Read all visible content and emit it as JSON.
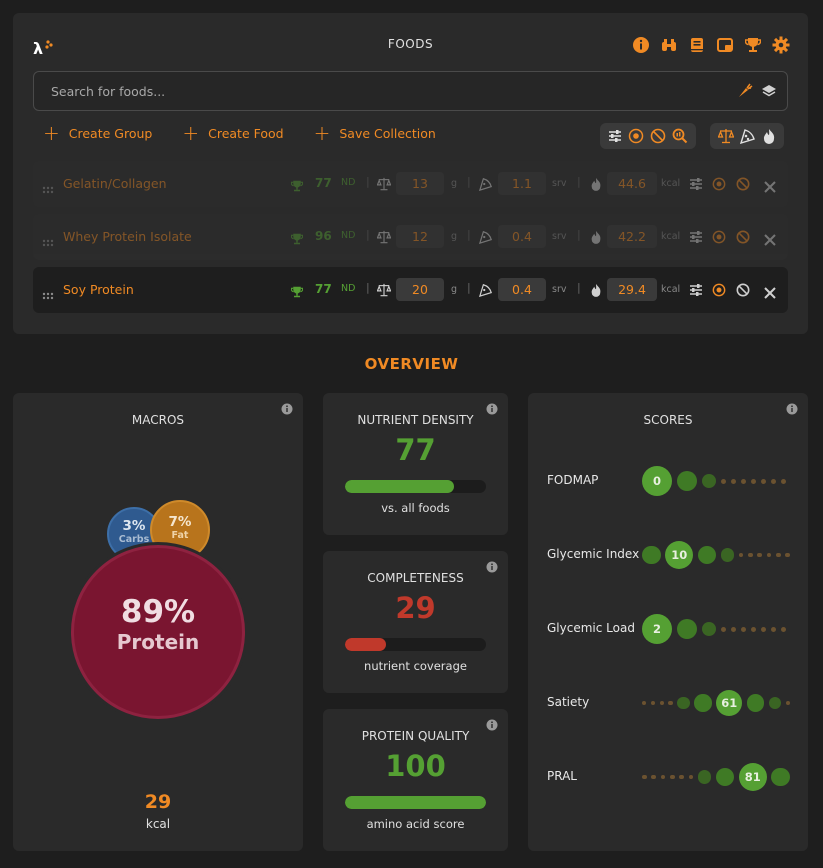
{
  "foods_panel": {
    "title": "FOODS",
    "search_placeholder": "Search for foods...",
    "actions": [
      {
        "label": "Create Group"
      },
      {
        "label": "Create Food"
      },
      {
        "label": "Save Collection"
      }
    ],
    "header_icons": [
      "info-icon",
      "binoculars-icon",
      "book-icon",
      "picture-in-picture-icon",
      "trophy-icon",
      "gear-icon"
    ],
    "rows": [
      {
        "name": "Gelatin/Collagen",
        "score": "77",
        "nd": "ND",
        "amount": "13",
        "amount_unit": "g",
        "servings": "1.1",
        "servings_unit": "srv",
        "kcal": "44.6",
        "kcal_unit": "kcal",
        "active": false
      },
      {
        "name": "Whey Protein Isolate",
        "score": "96",
        "nd": "ND",
        "amount": "12",
        "amount_unit": "g",
        "servings": "0.4",
        "servings_unit": "srv",
        "kcal": "42.2",
        "kcal_unit": "kcal",
        "active": false
      },
      {
        "name": "Soy Protein",
        "score": "77",
        "nd": "ND",
        "amount": "20",
        "amount_unit": "g",
        "servings": "0.4",
        "servings_unit": "srv",
        "kcal": "29.4",
        "kcal_unit": "kcal",
        "active": true
      }
    ]
  },
  "overview": {
    "title": "OVERVIEW",
    "macros": {
      "title": "MACROS",
      "carbs_pct": "3%",
      "carbs_label": "Carbs",
      "fat_pct": "7%",
      "fat_label": "Fat",
      "protein_pct": "89%",
      "protein_label": "Protein",
      "kcal": "29",
      "kcal_label": "kcal"
    },
    "nutrient_density": {
      "title": "NUTRIENT DENSITY",
      "value": "77",
      "fraction": 0.77,
      "caption": "vs. all foods"
    },
    "completeness": {
      "title": "COMPLETENESS",
      "value": "29",
      "fraction": 0.29,
      "caption": "nutrient coverage"
    },
    "protein_quality": {
      "title": "PROTEIN QUALITY",
      "value": "100",
      "fraction": 1.0,
      "caption": "amino acid score"
    },
    "scores": {
      "title": "SCORES",
      "items": [
        {
          "label": "FODMAP",
          "value": "0",
          "position": 0
        },
        {
          "label": "Glycemic Index",
          "value": "10",
          "position": 1
        },
        {
          "label": "Glycemic Load",
          "value": "2",
          "position": 0
        },
        {
          "label": "Satiety",
          "value": "61",
          "position": 6
        },
        {
          "label": "PRAL",
          "value": "81",
          "position": 8
        }
      ]
    }
  },
  "colors": {
    "accent": "#f08a24",
    "green": "#55a033",
    "red": "#c0392b",
    "protein": "#7a1530",
    "carbs": "#2f5a8f",
    "fat": "#b8741c"
  }
}
